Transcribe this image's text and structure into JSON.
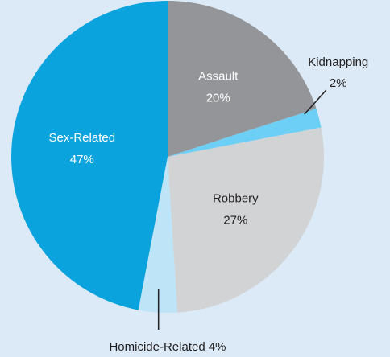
{
  "chart_data": {
    "type": "pie",
    "categories": [
      "Assault",
      "Kidnapping",
      "Robbery",
      "Homicide-Related",
      "Sex-Related"
    ],
    "values": [
      20,
      2,
      27,
      4,
      47
    ],
    "value_labels": [
      "20%",
      "2%",
      "27%",
      "4%",
      "47%"
    ],
    "colors": [
      "#939598",
      "#6dcff6",
      "#d1d3d4",
      "#bde4f7",
      "#0ba3dd"
    ],
    "label_colors": [
      "#ffffff",
      "#231f20",
      "#231f20",
      "#231f20",
      "#ffffff"
    ]
  }
}
